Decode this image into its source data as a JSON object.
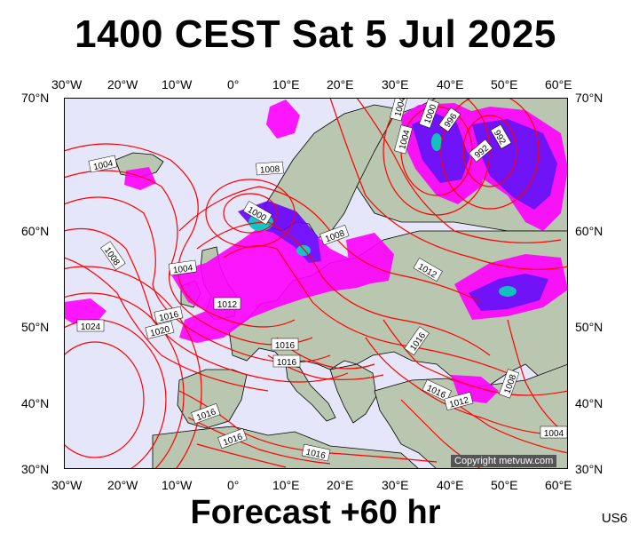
{
  "title": "1400 CEST Sat 5 Jul 2025",
  "footer": "Forecast +60 hr",
  "product_code": "US6",
  "copyright": "Copyright metvuw.com",
  "lon_ticks": [
    "30°W",
    "20°W",
    "10°W",
    "0°",
    "10°E",
    "20°E",
    "30°E",
    "40°E",
    "50°E",
    "60°E"
  ],
  "lat_ticks": [
    "70°N",
    "60°N",
    "50°N",
    "40°N",
    "30°N"
  ],
  "isobar_labels": [
    "1004",
    "1008",
    "1004",
    "1016",
    "1020",
    "1024",
    "1000",
    "1008",
    "1004",
    "1012",
    "1004",
    "1000",
    "996",
    "992",
    "992",
    "1008",
    "1012",
    "1016",
    "1016",
    "1016",
    "1016",
    "1012",
    "1008",
    "1016",
    "1016",
    "1016",
    "1004"
  ],
  "colors": {
    "ocean": "#e6e6fa",
    "isobar": "#ff0000",
    "precip_light": "#ff00ff",
    "precip_heavy": "#6a00ff",
    "precip_core": "#00c0c0",
    "land": "#b9c6b0"
  }
}
